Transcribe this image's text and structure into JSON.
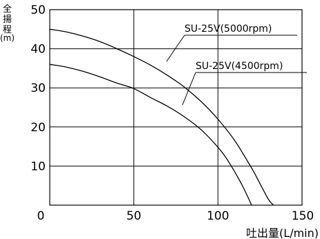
{
  "chart_data": {
    "type": "line",
    "ylabel": "全\n揚\n程\n(m)",
    "xlabel": "吐出量(L/min)",
    "xlim": [
      0,
      150
    ],
    "ylim": [
      0,
      50
    ],
    "x_ticks": [
      "0",
      "50",
      "100",
      "150"
    ],
    "y_ticks": [
      "10",
      "20",
      "30",
      "40",
      "50"
    ],
    "grid": true,
    "series": [
      {
        "name": "SU-25V(5000rpm)",
        "x": [
          0,
          10,
          20,
          30,
          40,
          50,
          60,
          70,
          80,
          90,
          100,
          110,
          120,
          125,
          130,
          133
        ],
        "y": [
          45,
          44.3,
          43.2,
          41.8,
          40.0,
          38.0,
          35.8,
          33.2,
          30.2,
          26.5,
          22.0,
          16.5,
          9.5,
          5.5,
          1.5,
          0
        ]
      },
      {
        "name": "SU-25V(4500rpm)",
        "x": [
          0,
          10,
          20,
          30,
          40,
          50,
          60,
          70,
          80,
          90,
          100,
          105,
          110,
          115,
          120
        ],
        "y": [
          36,
          35.3,
          34.2,
          32.8,
          31.2,
          29.8,
          27.5,
          25.3,
          22.6,
          19.3,
          14.8,
          12.0,
          8.5,
          4.6,
          0
        ]
      }
    ],
    "legend_labels": [
      {
        "text": "SU-25V(5000rpm)"
      },
      {
        "text": "SU-25V(4500rpm)"
      }
    ]
  }
}
